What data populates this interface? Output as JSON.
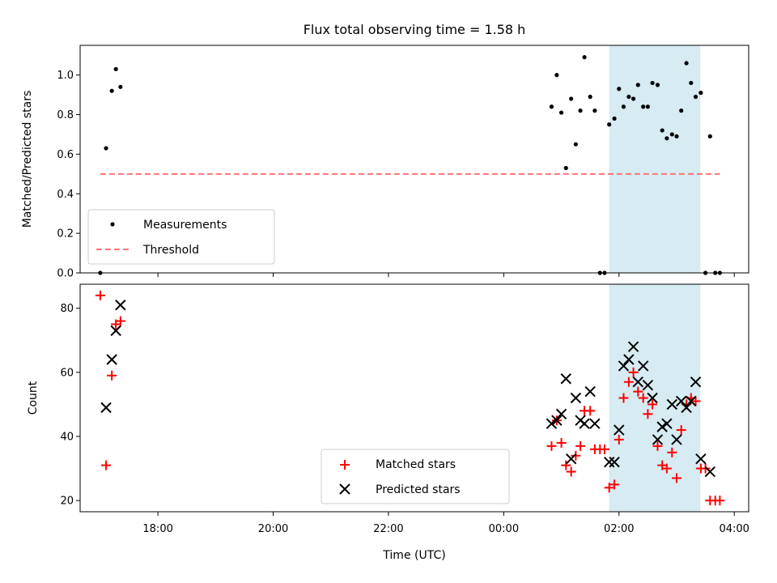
{
  "colors": {
    "measurement": "#000000",
    "threshold": "#ff7373",
    "matched": "#ff0000",
    "predicted": "#000000",
    "window_fill": "#add8e6"
  },
  "chart_data": [
    {
      "type": "scatter",
      "panel": "top",
      "title": "Flux total observing time = 1.58 h",
      "xlabel": "",
      "ylabel": "Matched/Predicted stars",
      "xlim": [
        -7.35,
        4.25
      ],
      "ylim": [
        0,
        1.15
      ],
      "x_unit": "hours relative to 00:00 UTC",
      "yticks": [
        0.0,
        0.2,
        0.4,
        0.6,
        0.8,
        1.0
      ],
      "ytick_labels": [
        "0.0",
        "0.2",
        "0.4",
        "0.6",
        "0.8",
        "1.0"
      ],
      "highlight_window": [
        1.83,
        3.41
      ],
      "threshold": {
        "value": 0.5,
        "x_range": [
          -7.0,
          3.75
        ]
      },
      "legend": {
        "location": "lower left",
        "entries": [
          "Measurements",
          "Threshold"
        ]
      },
      "series": [
        {
          "name": "Measurements",
          "points": [
            [
              -7.0,
              0.0
            ],
            [
              -6.9,
              0.63
            ],
            [
              -6.8,
              0.92
            ],
            [
              -6.73,
              1.03
            ],
            [
              -6.65,
              0.94
            ],
            [
              0.83,
              0.84
            ],
            [
              0.92,
              1.0
            ],
            [
              1.0,
              0.81
            ],
            [
              1.08,
              0.53
            ],
            [
              1.17,
              0.88
            ],
            [
              1.25,
              0.65
            ],
            [
              1.33,
              0.82
            ],
            [
              1.4,
              1.09
            ],
            [
              1.5,
              0.89
            ],
            [
              1.58,
              0.82
            ],
            [
              1.67,
              0.0
            ],
            [
              1.75,
              0.0
            ],
            [
              1.83,
              0.75
            ],
            [
              1.92,
              0.78
            ],
            [
              2.0,
              0.93
            ],
            [
              2.08,
              0.84
            ],
            [
              2.17,
              0.89
            ],
            [
              2.25,
              0.88
            ],
            [
              2.33,
              0.95
            ],
            [
              2.42,
              0.84
            ],
            [
              2.5,
              0.84
            ],
            [
              2.58,
              0.96
            ],
            [
              2.67,
              0.95
            ],
            [
              2.75,
              0.72
            ],
            [
              2.83,
              0.68
            ],
            [
              2.92,
              0.7
            ],
            [
              3.0,
              0.69
            ],
            [
              3.08,
              0.82
            ],
            [
              3.17,
              1.06
            ],
            [
              3.25,
              0.96
            ],
            [
              3.33,
              0.89
            ],
            [
              3.42,
              0.91
            ],
            [
              3.5,
              0.0
            ],
            [
              3.58,
              0.69
            ],
            [
              3.67,
              0.0
            ],
            [
              3.75,
              0.0
            ]
          ]
        }
      ]
    },
    {
      "type": "scatter",
      "panel": "bottom",
      "title": "",
      "xlabel": "Time (UTC)",
      "ylabel": "Count",
      "xlim": [
        -7.35,
        4.25
      ],
      "ylim": [
        16.5,
        87.5
      ],
      "xticks": [
        -6,
        -4,
        -2,
        0,
        2,
        4
      ],
      "xtick_labels": [
        "18:00",
        "20:00",
        "22:00",
        "00:00",
        "02:00",
        "04:00"
      ],
      "yticks": [
        20,
        40,
        60,
        80
      ],
      "ytick_labels": [
        "20",
        "40",
        "60",
        "80"
      ],
      "highlight_window": [
        1.83,
        3.41
      ],
      "legend": {
        "location": "lower center",
        "entries": [
          "Matched stars",
          "Predicted stars"
        ]
      },
      "series": [
        {
          "name": "Matched stars",
          "marker": "plus",
          "points": [
            [
              -7.0,
              84
            ],
            [
              -6.9,
              31
            ],
            [
              -6.8,
              59
            ],
            [
              -6.73,
              75
            ],
            [
              -6.65,
              76
            ],
            [
              0.83,
              37
            ],
            [
              0.92,
              45
            ],
            [
              1.0,
              38
            ],
            [
              1.08,
              31
            ],
            [
              1.17,
              29
            ],
            [
              1.25,
              34
            ],
            [
              1.33,
              37
            ],
            [
              1.4,
              48
            ],
            [
              1.5,
              48
            ],
            [
              1.58,
              36
            ],
            [
              1.67,
              36
            ],
            [
              1.75,
              36
            ],
            [
              1.83,
              24
            ],
            [
              1.92,
              25
            ],
            [
              2.0,
              39
            ],
            [
              2.08,
              52
            ],
            [
              2.17,
              57
            ],
            [
              2.25,
              60
            ],
            [
              2.33,
              54
            ],
            [
              2.42,
              52
            ],
            [
              2.5,
              47
            ],
            [
              2.58,
              50
            ],
            [
              2.67,
              37
            ],
            [
              2.75,
              31
            ],
            [
              2.83,
              30
            ],
            [
              2.92,
              35
            ],
            [
              3.0,
              27
            ],
            [
              3.08,
              42
            ],
            [
              3.17,
              50
            ],
            [
              3.25,
              52
            ],
            [
              3.33,
              51
            ],
            [
              3.42,
              30
            ],
            [
              3.5,
              30
            ],
            [
              3.58,
              20
            ],
            [
              3.67,
              20
            ],
            [
              3.75,
              20
            ]
          ]
        },
        {
          "name": "Predicted stars",
          "marker": "x",
          "points": [
            [
              -6.9,
              49
            ],
            [
              -6.8,
              64
            ],
            [
              -6.73,
              73
            ],
            [
              -6.65,
              81
            ],
            [
              0.83,
              44
            ],
            [
              0.92,
              45
            ],
            [
              1.0,
              47
            ],
            [
              1.08,
              58
            ],
            [
              1.17,
              33
            ],
            [
              1.25,
              52
            ],
            [
              1.33,
              45
            ],
            [
              1.4,
              44
            ],
            [
              1.5,
              54
            ],
            [
              1.58,
              44
            ],
            [
              1.83,
              32
            ],
            [
              1.92,
              32
            ],
            [
              2.0,
              42
            ],
            [
              2.08,
              62
            ],
            [
              2.17,
              64
            ],
            [
              2.25,
              68
            ],
            [
              2.33,
              57
            ],
            [
              2.42,
              62
            ],
            [
              2.5,
              56
            ],
            [
              2.58,
              52
            ],
            [
              2.67,
              39
            ],
            [
              2.75,
              43
            ],
            [
              2.83,
              44
            ],
            [
              2.92,
              50
            ],
            [
              3.0,
              39
            ],
            [
              3.08,
              51
            ],
            [
              3.17,
              49
            ],
            [
              3.25,
              51
            ],
            [
              3.33,
              57
            ],
            [
              3.42,
              33
            ],
            [
              3.58,
              29
            ]
          ]
        }
      ]
    }
  ]
}
